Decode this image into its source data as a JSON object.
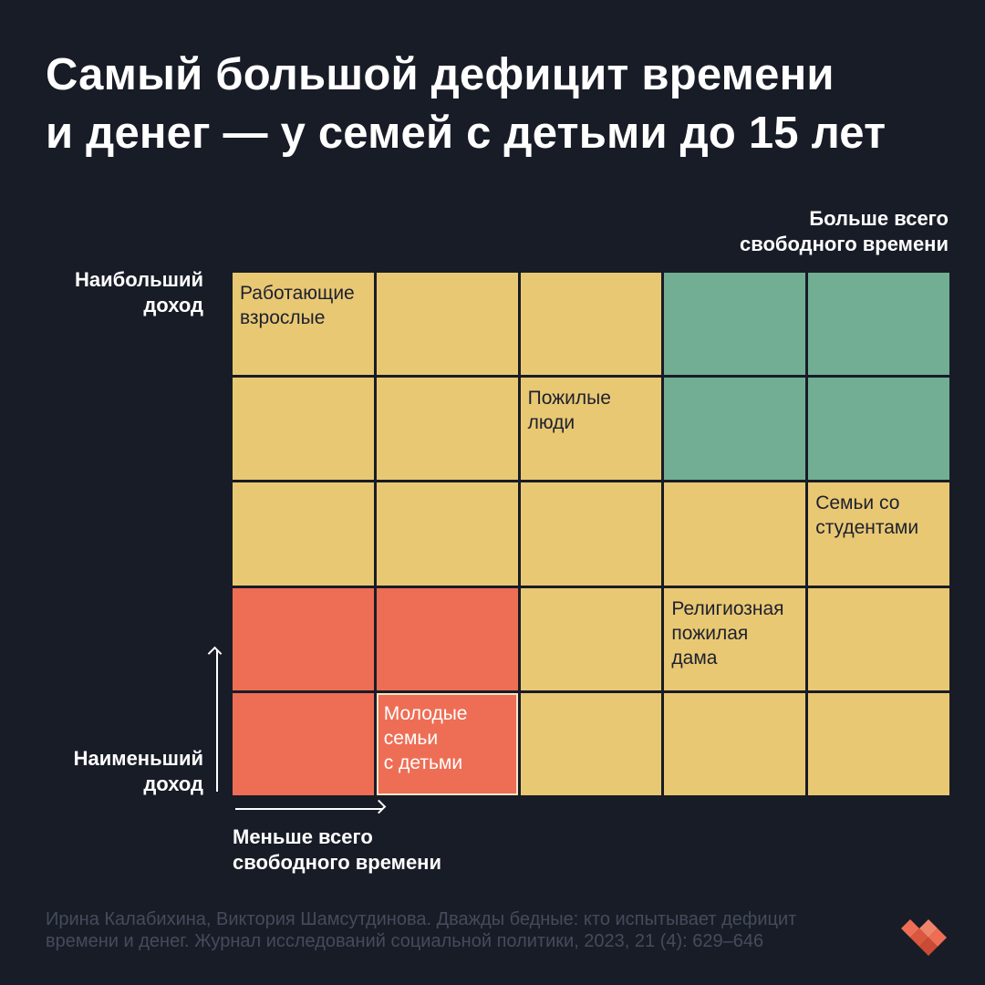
{
  "title": {
    "line1": "Самый большой дефицит времени",
    "line2": "и денег — у семей с детьми до 15 лет"
  },
  "axes": {
    "top_right": {
      "line1": "Больше всего",
      "line2": "свободного времени"
    },
    "left_top": {
      "line1": "Наибольший",
      "line2": "доход"
    },
    "left_bottom": {
      "line1": "Наименьший",
      "line2": "доход"
    },
    "bottom_left": {
      "line1": "Меньше всего",
      "line2": "свободного времени"
    }
  },
  "colors": {
    "background": "#181c27",
    "yellow": "#e8c872",
    "green": "#71ae93",
    "red": "#ee6e55",
    "source_text": "#454b5b"
  },
  "grid": {
    "rows": [
      [
        {
          "color": "yellow",
          "label": [
            "Работающие",
            "взрослые"
          ]
        },
        {
          "color": "yellow"
        },
        {
          "color": "yellow"
        },
        {
          "color": "green"
        },
        {
          "color": "green"
        }
      ],
      [
        {
          "color": "yellow"
        },
        {
          "color": "yellow"
        },
        {
          "color": "yellow",
          "label": [
            "Пожилые",
            "люди"
          ]
        },
        {
          "color": "green"
        },
        {
          "color": "green"
        }
      ],
      [
        {
          "color": "yellow"
        },
        {
          "color": "yellow"
        },
        {
          "color": "yellow"
        },
        {
          "color": "yellow"
        },
        {
          "color": "yellow",
          "label": [
            "Семьи со",
            "студентами"
          ]
        }
      ],
      [
        {
          "color": "red"
        },
        {
          "color": "red"
        },
        {
          "color": "yellow"
        },
        {
          "color": "yellow",
          "label": [
            "Религиозная",
            "пожилая",
            "дама"
          ]
        },
        {
          "color": "yellow"
        }
      ],
      [
        {
          "color": "red"
        },
        {
          "color": "red",
          "label": [
            "Молодые",
            "семьи",
            "с детьми"
          ],
          "highlight": true
        },
        {
          "color": "yellow"
        },
        {
          "color": "yellow"
        },
        {
          "color": "yellow"
        }
      ]
    ]
  },
  "source": {
    "line1": "Ирина Калабихина, Виктория Шамсутдинова. Дважды бедные: кто испытывает дефицит",
    "line2": "времени и денег. Журнал исследований социальной политики, 2023, 21 (4): 629–646"
  },
  "logo": {
    "icon": "brand-logo-icon"
  }
}
